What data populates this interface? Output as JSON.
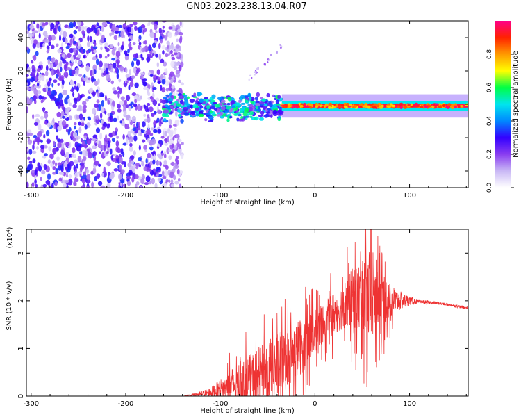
{
  "title": "GN03.2023.238.13.04.R07",
  "colors": {
    "snr_line": "#ee3333",
    "axis": "#000000",
    "background": "#ffffff"
  },
  "chart_data": [
    {
      "type": "heatmap",
      "xlabel": "Height of straight line (km)",
      "ylabel": "Frequency (Hz)",
      "xlim": [
        -305,
        162
      ],
      "ylim": [
        -50,
        50
      ],
      "xticks": [
        -300,
        -200,
        -100,
        0,
        100
      ],
      "yticks": [
        -40,
        -20,
        0,
        20,
        40
      ],
      "colorbar": {
        "label": "Normalized spectral amplitude",
        "range": [
          0,
          1
        ],
        "ticks": [
          0.0,
          0.2,
          0.4,
          0.6,
          0.8
        ],
        "colors": [
          "#ffffff",
          "#c9b8f5",
          "#8a3df0",
          "#3300ff",
          "#0088ff",
          "#00e5ee",
          "#00ff44",
          "#ffff00",
          "#ff9900",
          "#ff2200",
          "#ff0088"
        ]
      },
      "regions": [
        {
          "name": "noise",
          "x": [
            -305,
            -140
          ],
          "freq": [
            -50,
            50
          ],
          "amplitude": [
            0.05,
            0.35
          ]
        },
        {
          "name": "scattered signal",
          "x": [
            -160,
            -35
          ],
          "freq": [
            -10,
            8
          ],
          "amplitude": [
            0.15,
            0.6
          ]
        },
        {
          "name": "narrow tone",
          "x": [
            -35,
            162
          ],
          "freq": [
            -2,
            0
          ],
          "amplitude": [
            0.7,
            1.0
          ]
        },
        {
          "name": "faint streak",
          "x": [
            -70,
            -35
          ],
          "freq": [
            15,
            35
          ],
          "amplitude": [
            0.05,
            0.2
          ]
        }
      ]
    },
    {
      "type": "line",
      "xlabel": "Height of straight line (km)",
      "ylabel": "SNR (10 * v/v)",
      "y_multiplier": "(x10",
      "y_exponent": "4",
      "exponent_close": ")",
      "xlim": [
        -305,
        162
      ],
      "ylim": [
        0,
        3.5
      ],
      "xticks": [
        -300,
        -200,
        -100,
        0,
        100
      ],
      "yticks": [
        0,
        1,
        2,
        3
      ],
      "series_envelope": {
        "x": [
          -305,
          -140,
          -130,
          -110,
          -100,
          -85,
          -70,
          -55,
          -40,
          -30,
          -20,
          -10,
          0,
          10,
          20,
          30,
          40,
          50,
          60,
          70,
          80,
          90,
          100,
          110,
          130,
          162
        ],
        "mean": [
          0.0,
          0.0,
          0.02,
          0.08,
          0.15,
          0.25,
          0.35,
          0.5,
          0.65,
          0.8,
          0.95,
          1.15,
          1.35,
          1.55,
          1.75,
          1.9,
          2.0,
          2.05,
          2.1,
          2.05,
          2.0,
          2.0,
          2.0,
          1.98,
          1.95,
          1.85
        ],
        "spread": [
          0.0,
          0.0,
          0.02,
          0.1,
          0.2,
          0.4,
          0.5,
          0.6,
          0.7,
          0.6,
          0.6,
          0.6,
          0.45,
          0.4,
          0.45,
          0.5,
          0.7,
          0.8,
          1.0,
          0.6,
          0.35,
          0.2,
          0.1,
          0.04,
          0.03,
          0.03
        ]
      }
    }
  ]
}
